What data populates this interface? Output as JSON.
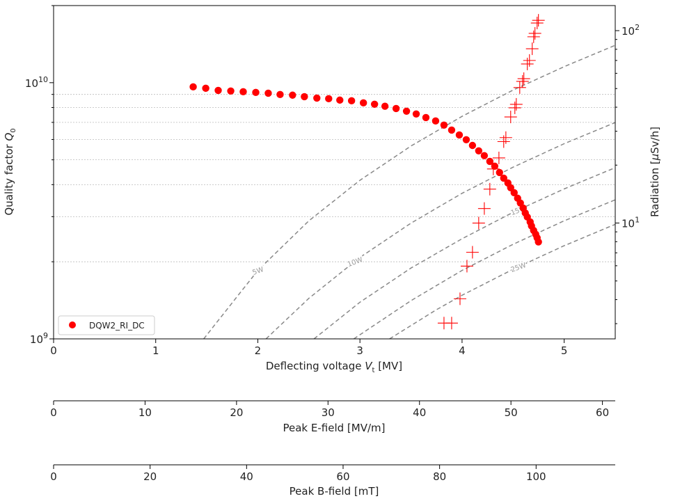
{
  "chart_data": {
    "type": "scatter",
    "x_axis": {
      "label": {
        "text": "Deflecting voltage ",
        "var": "V",
        "sub": "t",
        "unit": " [MV]"
      },
      "lim": [
        0,
        5.5
      ],
      "ticks": [
        0,
        1,
        2,
        3,
        4,
        5
      ],
      "tick_labels": [
        "0",
        "1",
        "2",
        "3",
        "4",
        "5"
      ]
    },
    "y_axis_left": {
      "label": {
        "text": "Quality factor ",
        "var": "Q",
        "sub": "0"
      },
      "scale": "log",
      "lim": [
        1000000000.0,
        20000000000.0
      ],
      "ticks": [
        1000000000.0,
        10000000000.0
      ],
      "tick_labels": [
        "10^9",
        "10^10"
      ],
      "minor_grid": true,
      "grid_style": "dotted light gray at minor ticks"
    },
    "y_axis_right": {
      "label": {
        "text": "Radiation [",
        "var": "μ",
        "unit": "Sv/h]"
      },
      "scale": "log",
      "lim": [
        2.5,
        135
      ],
      "ticks": [
        10,
        100
      ],
      "tick_labels": [
        "10^1",
        "10^2"
      ]
    },
    "secondary_x_axes": [
      {
        "label": "Peak E-field [MV/m]",
        "lim": [
          0,
          61.4
        ],
        "ticks": [
          0,
          10,
          20,
          30,
          40,
          50,
          60
        ],
        "tick_labels": [
          "0",
          "10",
          "20",
          "30",
          "40",
          "50",
          "60"
        ]
      },
      {
        "label": "Peak B-field [mT]",
        "lim": [
          0,
          116.4
        ],
        "ticks": [
          0,
          20,
          40,
          60,
          80,
          100
        ],
        "tick_labels": [
          "0",
          "20",
          "40",
          "60",
          "80",
          "100"
        ]
      }
    ],
    "series": [
      {
        "name": "DQW2_RI_DC",
        "axis": "left",
        "marker": "circle",
        "color": "#ff0000",
        "x": [
          1.367,
          1.49,
          1.612,
          1.735,
          1.857,
          1.98,
          2.102,
          2.218,
          2.34,
          2.456,
          2.578,
          2.694,
          2.803,
          2.918,
          3.034,
          3.143,
          3.245,
          3.354,
          3.456,
          3.551,
          3.646,
          3.741,
          3.823,
          3.898,
          3.973,
          4.041,
          4.102,
          4.163,
          4.218,
          4.272,
          4.32,
          4.367,
          4.408,
          4.449,
          4.476,
          4.51,
          4.544,
          4.571,
          4.599,
          4.619,
          4.639,
          4.667,
          4.68,
          4.701,
          4.721,
          4.735,
          4.748
        ],
        "y": [
          9630000000.0,
          9510000000.0,
          9330000000.0,
          9280000000.0,
          9220000000.0,
          9160000000.0,
          9100000000.0,
          8990000000.0,
          8940000000.0,
          8820000000.0,
          8710000000.0,
          8660000000.0,
          8550000000.0,
          8500000000.0,
          8340000000.0,
          8240000000.0,
          8090000000.0,
          7930000000.0,
          7740000000.0,
          7550000000.0,
          7310000000.0,
          7090000000.0,
          6830000000.0,
          6530000000.0,
          6250000000.0,
          5990000000.0,
          5690000000.0,
          5420000000.0,
          5190000000.0,
          4930000000.0,
          4720000000.0,
          4460000000.0,
          4240000000.0,
          4060000000.0,
          3890000000.0,
          3720000000.0,
          3540000000.0,
          3390000000.0,
          3240000000.0,
          3100000000.0,
          2990000000.0,
          2860000000.0,
          2760000000.0,
          2650000000.0,
          2560000000.0,
          2480000000.0,
          2390000000.0
        ]
      },
      {
        "axis": "right",
        "marker": "plus",
        "color": "#ff0000",
        "x": [
          3.823,
          3.898,
          3.98,
          4.048,
          4.102,
          4.163,
          4.218,
          4.272,
          4.306,
          4.361,
          4.408,
          4.429,
          4.476,
          4.517,
          4.531,
          4.565,
          4.592,
          4.605,
          4.639,
          4.66,
          4.687,
          4.701,
          4.714,
          4.735,
          4.748
        ],
        "y": [
          3.02,
          3.02,
          4.04,
          5.97,
          7.05,
          10.0,
          11.9,
          15.0,
          19.1,
          21.8,
          26.5,
          27.8,
          35.6,
          39.7,
          41.4,
          50.6,
          54.5,
          56.3,
          67.1,
          70.0,
          80.5,
          92.9,
          96.8,
          109.6,
          113.2
        ]
      }
    ],
    "contours": [
      {
        "label": "5W",
        "power_W": 5,
        "points": [
          [
            1.47,
            1000000000.0
          ],
          [
            2,
            1850000000.0
          ],
          [
            2.5,
            2890000000.0
          ],
          [
            3,
            4160000000.0
          ],
          [
            3.5,
            5660000000.0
          ],
          [
            4,
            7390000000.0
          ],
          [
            4.5,
            9360000000.0
          ],
          [
            5,
            11550000000.0
          ],
          [
            5.5,
            14000000000.0
          ]
        ]
      },
      {
        "label": "10W",
        "power_W": 10,
        "points": [
          [
            2.08,
            1000000000.0
          ],
          [
            2.5,
            1440000000.0
          ],
          [
            3,
            2080000000.0
          ],
          [
            3.5,
            2830000000.0
          ],
          [
            4,
            3700000000.0
          ],
          [
            4.5,
            4680000000.0
          ],
          [
            5,
            5780000000.0
          ],
          [
            5.5,
            6990000000.0
          ]
        ]
      },
      {
        "label": "15W",
        "power_W": 15,
        "points": [
          [
            2.55,
            1000000000.0
          ],
          [
            3,
            1390000000.0
          ],
          [
            3.5,
            1890000000.0
          ],
          [
            4,
            2460000000.0
          ],
          [
            4.5,
            3120000000.0
          ],
          [
            5,
            3850000000.0
          ],
          [
            5.5,
            4660000000.0
          ]
        ]
      },
      {
        "label": "",
        "power_W": 20,
        "points": [
          [
            2.94,
            1000000000.0
          ],
          [
            3.5,
            1410000000.0
          ],
          [
            4,
            1850000000.0
          ],
          [
            4.5,
            2340000000.0
          ],
          [
            5,
            2890000000.0
          ],
          [
            5.5,
            3490000000.0
          ]
        ]
      },
      {
        "label": "25W",
        "power_W": 25,
        "points": [
          [
            3.29,
            1000000000.0
          ],
          [
            3.75,
            1300000000.0
          ],
          [
            4,
            1480000000.0
          ],
          [
            4.5,
            1870000000.0
          ],
          [
            5,
            2310000000.0
          ],
          [
            5.5,
            2800000000.0
          ]
        ]
      }
    ],
    "legend": {
      "position": "lower-left",
      "entries": [
        "DQW2_RI_DC"
      ]
    },
    "colors": {
      "data": "#ff0000",
      "contour": "#888888",
      "grid": "#bbbbbb"
    }
  }
}
